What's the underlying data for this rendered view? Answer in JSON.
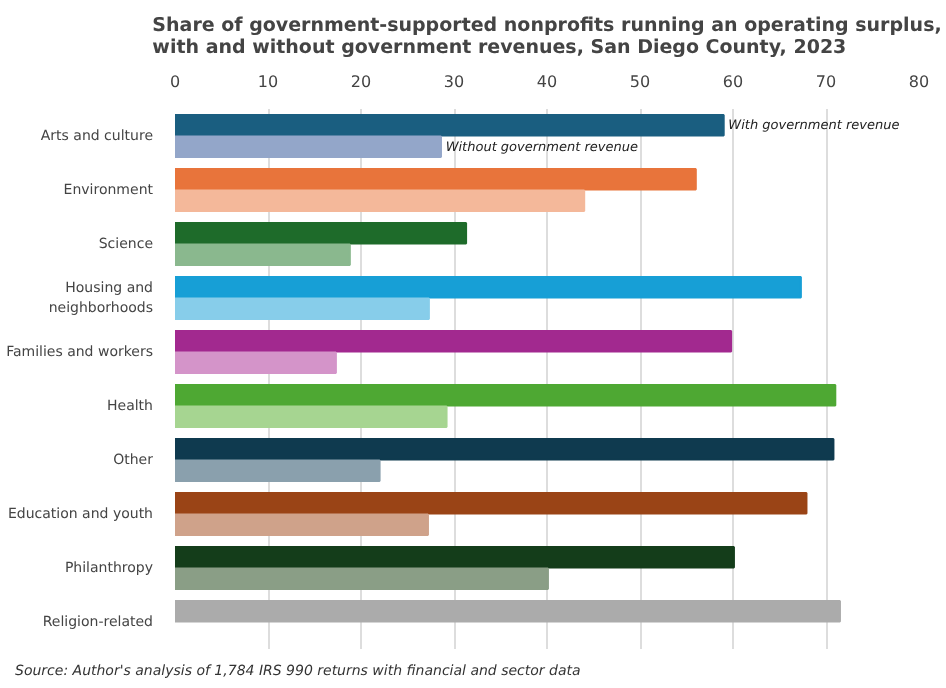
{
  "chart_data": {
    "type": "bar",
    "orientation": "horizontal",
    "title": "Share of government-supported nonprofits running an operating surplus, with and without government revenues, San Diego County, 2023",
    "categories": [
      "Arts and culture",
      "Environment",
      "Science",
      "Housing and neighborhoods",
      "Families and workers",
      "Health",
      "Other",
      "Education and youth",
      "Philanthropy",
      "Religion-related"
    ],
    "series": [
      {
        "name": "With government revenue",
        "colors": [
          "#1a5e80",
          "#e8743b",
          "#1e6b2a",
          "#179fd6",
          "#a2298f",
          "#4ea833",
          "#0f3a4f",
          "#9a4416",
          "#143d1a",
          "#ababab"
        ],
        "values": [
          59.0,
          56.0,
          31.3,
          67.3,
          59.8,
          71.0,
          70.8,
          67.9,
          60.1,
          71.5
        ]
      },
      {
        "name": "Without government revenue",
        "colors": [
          "#93a6c9",
          "#f4b89a",
          "#8ab88e",
          "#87cdea",
          "#d494c9",
          "#a6d591",
          "#8aa0ad",
          "#cfa28a",
          "#8a9e86",
          null
        ],
        "values": [
          28.6,
          44.0,
          18.8,
          27.3,
          17.3,
          29.2,
          22.0,
          27.2,
          40.1,
          null
        ]
      }
    ],
    "xlim": [
      0,
      80
    ],
    "xticks": [
      0,
      10,
      20,
      30,
      40,
      50,
      60,
      70,
      80
    ],
    "grid": "x",
    "annotations": [
      "Source: Author's analysis of 1,784 IRS 990 returns with financial and sector data"
    ]
  }
}
